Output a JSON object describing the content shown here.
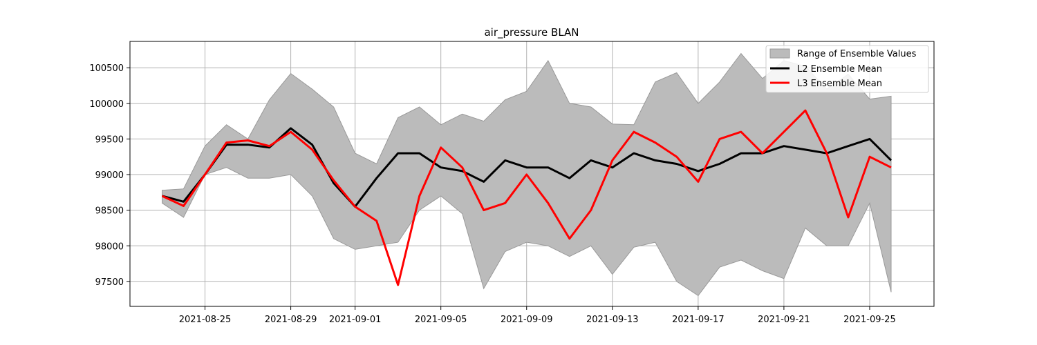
{
  "chart_data": {
    "type": "line",
    "title": "air_pressure BLAN",
    "xlabel": "",
    "ylabel": "",
    "x_start": "2021-08-23",
    "x_end": "2021-09-26",
    "xlim": [
      "2021-08-21T12:00",
      "2021-09-28"
    ],
    "ylim": [
      97150,
      100870
    ],
    "x_ticks": [
      "2021-08-25",
      "2021-08-29",
      "2021-09-01",
      "2021-09-05",
      "2021-09-09",
      "2021-09-13",
      "2021-09-17",
      "2021-09-21",
      "2021-09-25"
    ],
    "y_ticks": [
      97500,
      98000,
      98500,
      99000,
      99500,
      100000,
      100500
    ],
    "grid": true,
    "legend_position": "top-right",
    "colors": {
      "band": "#bbbbbb",
      "band_edge": "#999999",
      "l2": "#000000",
      "l3": "#ff0000"
    },
    "series": [
      {
        "name": "Range of Ensemble Values",
        "kind": "band",
        "upper": [
          98780,
          98800,
          99400,
          99700,
          99500,
          100050,
          100420,
          100200,
          99950,
          99300,
          99150,
          99800,
          99950,
          99700,
          99850,
          99750,
          100050,
          100170,
          100600,
          100000,
          99950,
          99710,
          99700,
          100300,
          100430,
          100000,
          100300,
          100700,
          100350,
          100600,
          100520,
          100200,
          100410,
          100060,
          100100
        ],
        "lower": [
          98600,
          98400,
          99000,
          99100,
          98950,
          98950,
          99000,
          98700,
          98100,
          97950,
          98000,
          98050,
          98500,
          98700,
          98450,
          97400,
          97920,
          98050,
          98000,
          97850,
          98000,
          97600,
          97980,
          98050,
          97500,
          97300,
          97700,
          97800,
          97650,
          97540,
          98250,
          98000,
          98000,
          98600,
          97350
        ]
      },
      {
        "name": "L2 Ensemble Mean",
        "kind": "line",
        "values": [
          98700,
          98620,
          99000,
          99420,
          99420,
          99380,
          99650,
          99420,
          98880,
          98550,
          98950,
          99300,
          99300,
          99100,
          99050,
          98900,
          99200,
          99100,
          99100,
          98950,
          99200,
          99100,
          99300,
          99200,
          99150,
          99050,
          99150,
          99300,
          99300,
          99400,
          99350,
          99300,
          99400,
          99500,
          99200
        ]
      },
      {
        "name": "L3 Ensemble Mean",
        "kind": "line",
        "values": [
          98700,
          98560,
          99000,
          99450,
          99480,
          99400,
          99600,
          99350,
          98920,
          98550,
          98350,
          97450,
          98700,
          99380,
          99100,
          98500,
          98600,
          99000,
          98600,
          98100,
          98500,
          99200,
          99600,
          99450,
          99250,
          98900,
          99500,
          99600,
          99300,
          99600,
          99900,
          99300,
          98400,
          99250,
          99100
        ]
      }
    ]
  }
}
